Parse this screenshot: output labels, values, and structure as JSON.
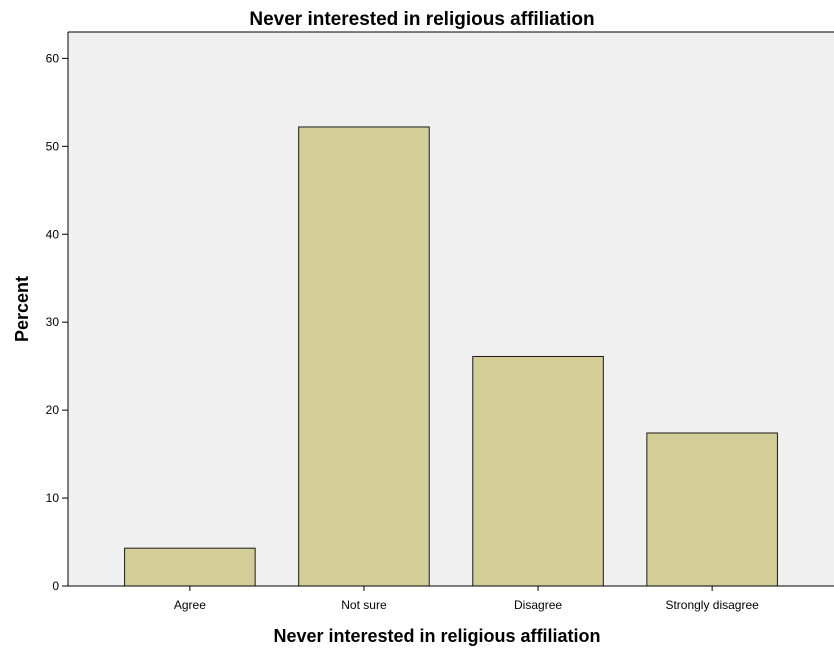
{
  "chart_data": {
    "type": "bar",
    "title": "Never interested in religious affiliation",
    "xlabel": "Never interested in religious affiliation",
    "ylabel": "Percent",
    "categories": [
      "Agree",
      "Not sure",
      "Disagree",
      "Strongly disagree"
    ],
    "values": [
      4.3,
      52.2,
      26.1,
      17.4
    ],
    "ylim": [
      0,
      63
    ],
    "yticks": [
      0,
      10,
      20,
      30,
      40,
      50,
      60
    ],
    "grid": false,
    "colors": {
      "plot_background": "#f0f0f0",
      "bar_fill": "#d3ce97",
      "bar_stroke": "#1a1a1a"
    }
  }
}
